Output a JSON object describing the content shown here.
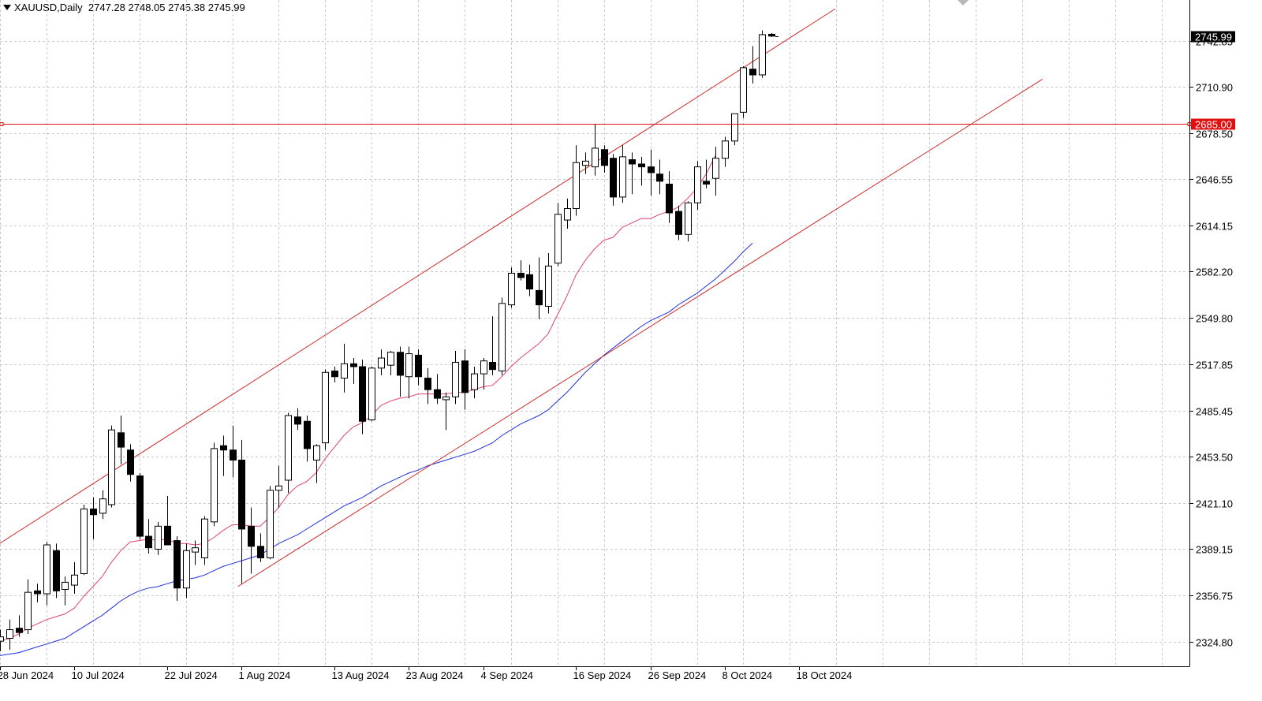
{
  "header": {
    "symbol": "XAUUSD,Daily",
    "ohlc": "2747.28 2748.05 2745.38 2745.99"
  },
  "colors": {
    "bull_fill": "#ffffff",
    "bear_fill": "#000000",
    "candle_outline": "#000000",
    "ma_fast": "#e0407a",
    "ma_slow": "#1f2fe0",
    "channel": "#cc2a2a",
    "hline": "#e01010",
    "grid": "#c8c8c8"
  },
  "chart_data": {
    "type": "candlestick",
    "ylim": [
      2310,
      2760
    ],
    "grid": true,
    "y_ticks": [
      2324.8,
      2356.75,
      2389.15,
      2421.1,
      2453.5,
      2485.45,
      2517.85,
      2549.8,
      2582.2,
      2614.15,
      2646.55,
      2678.5,
      2710.9,
      2742.85
    ],
    "y_tick_labels": [
      "2324.80",
      "2356.75",
      "2389.15",
      "2421.10",
      "2453.50",
      "2485.45",
      "2517.85",
      "2549.80",
      "2582.20",
      "2614.15",
      "2646.55",
      "2678.50",
      "2710.90",
      "2742.85"
    ],
    "x_labels": [
      {
        "index": 0,
        "label": "28 Jun 2024"
      },
      {
        "index": 8,
        "label": "10 Jul 2024"
      },
      {
        "index": 18,
        "label": "22 Jul 2024"
      },
      {
        "index": 26,
        "label": "1 Aug 2024"
      },
      {
        "index": 36,
        "label": "13 Aug 2024"
      },
      {
        "index": 44,
        "label": "23 Aug 2024"
      },
      {
        "index": 52,
        "label": "4 Sep 2024"
      },
      {
        "index": 62,
        "label": "16 Sep 2024"
      },
      {
        "index": 70,
        "label": "26 Sep 2024"
      },
      {
        "index": 78,
        "label": "8 Oct 2024"
      },
      {
        "index": 86,
        "label": "18 Oct 2024"
      }
    ],
    "candles": [
      {
        "o": 2325,
        "h": 2333,
        "l": 2318,
        "c": 2328
      },
      {
        "o": 2327,
        "h": 2340,
        "l": 2319,
        "c": 2333
      },
      {
        "o": 2334,
        "h": 2343,
        "l": 2328,
        "c": 2331
      },
      {
        "o": 2333,
        "h": 2368,
        "l": 2330,
        "c": 2359
      },
      {
        "o": 2360,
        "h": 2365,
        "l": 2352,
        "c": 2358
      },
      {
        "o": 2358,
        "h": 2394,
        "l": 2350,
        "c": 2392
      },
      {
        "o": 2388,
        "h": 2393,
        "l": 2355,
        "c": 2360
      },
      {
        "o": 2361,
        "h": 2370,
        "l": 2350,
        "c": 2366
      },
      {
        "o": 2364,
        "h": 2380,
        "l": 2358,
        "c": 2371
      },
      {
        "o": 2372,
        "h": 2420,
        "l": 2371,
        "c": 2417
      },
      {
        "o": 2417,
        "h": 2425,
        "l": 2396,
        "c": 2413
      },
      {
        "o": 2414,
        "h": 2430,
        "l": 2410,
        "c": 2424
      },
      {
        "o": 2420,
        "h": 2475,
        "l": 2418,
        "c": 2472
      },
      {
        "o": 2470,
        "h": 2482,
        "l": 2448,
        "c": 2460
      },
      {
        "o": 2458,
        "h": 2462,
        "l": 2436,
        "c": 2441
      },
      {
        "o": 2440,
        "h": 2442,
        "l": 2396,
        "c": 2398
      },
      {
        "o": 2398,
        "h": 2410,
        "l": 2386,
        "c": 2390
      },
      {
        "o": 2389,
        "h": 2408,
        "l": 2385,
        "c": 2405
      },
      {
        "o": 2405,
        "h": 2426,
        "l": 2393,
        "c": 2392
      },
      {
        "o": 2395,
        "h": 2398,
        "l": 2353,
        "c": 2362
      },
      {
        "o": 2362,
        "h": 2393,
        "l": 2355,
        "c": 2388
      },
      {
        "o": 2387,
        "h": 2395,
        "l": 2378,
        "c": 2390
      },
      {
        "o": 2383,
        "h": 2412,
        "l": 2378,
        "c": 2410
      },
      {
        "o": 2408,
        "h": 2463,
        "l": 2405,
        "c": 2459
      },
      {
        "o": 2461,
        "h": 2468,
        "l": 2440,
        "c": 2458
      },
      {
        "o": 2458,
        "h": 2475,
        "l": 2439,
        "c": 2451
      },
      {
        "o": 2451,
        "h": 2465,
        "l": 2365,
        "c": 2403
      },
      {
        "o": 2405,
        "h": 2418,
        "l": 2372,
        "c": 2391
      },
      {
        "o": 2391,
        "h": 2400,
        "l": 2380,
        "c": 2383
      },
      {
        "o": 2383,
        "h": 2433,
        "l": 2382,
        "c": 2430
      },
      {
        "o": 2430,
        "h": 2447,
        "l": 2418,
        "c": 2433
      },
      {
        "o": 2437,
        "h": 2484,
        "l": 2428,
        "c": 2482
      },
      {
        "o": 2481,
        "h": 2487,
        "l": 2472,
        "c": 2476
      },
      {
        "o": 2478,
        "h": 2482,
        "l": 2450,
        "c": 2459
      },
      {
        "o": 2451,
        "h": 2462,
        "l": 2435,
        "c": 2461
      },
      {
        "o": 2463,
        "h": 2514,
        "l": 2458,
        "c": 2512
      },
      {
        "o": 2513,
        "h": 2516,
        "l": 2505,
        "c": 2509
      },
      {
        "o": 2508,
        "h": 2532,
        "l": 2498,
        "c": 2518
      },
      {
        "o": 2518,
        "h": 2522,
        "l": 2504,
        "c": 2516
      },
      {
        "o": 2516,
        "h": 2521,
        "l": 2469,
        "c": 2478
      },
      {
        "o": 2479,
        "h": 2516,
        "l": 2478,
        "c": 2515
      },
      {
        "o": 2515,
        "h": 2528,
        "l": 2510,
        "c": 2522
      },
      {
        "o": 2517,
        "h": 2527,
        "l": 2510,
        "c": 2526
      },
      {
        "o": 2526,
        "h": 2530,
        "l": 2495,
        "c": 2510
      },
      {
        "o": 2509,
        "h": 2530,
        "l": 2494,
        "c": 2525
      },
      {
        "o": 2524,
        "h": 2528,
        "l": 2503,
        "c": 2509
      },
      {
        "o": 2508,
        "h": 2515,
        "l": 2490,
        "c": 2500
      },
      {
        "o": 2500,
        "h": 2511,
        "l": 2490,
        "c": 2494
      },
      {
        "o": 2493,
        "h": 2498,
        "l": 2472,
        "c": 2495
      },
      {
        "o": 2495,
        "h": 2527,
        "l": 2490,
        "c": 2519
      },
      {
        "o": 2520,
        "h": 2528,
        "l": 2486,
        "c": 2498
      },
      {
        "o": 2500,
        "h": 2516,
        "l": 2494,
        "c": 2511
      },
      {
        "o": 2511,
        "h": 2522,
        "l": 2500,
        "c": 2520
      },
      {
        "o": 2519,
        "h": 2551,
        "l": 2510,
        "c": 2514
      },
      {
        "o": 2513,
        "h": 2564,
        "l": 2510,
        "c": 2560
      },
      {
        "o": 2559,
        "h": 2585,
        "l": 2557,
        "c": 2581
      },
      {
        "o": 2581,
        "h": 2590,
        "l": 2576,
        "c": 2578
      },
      {
        "o": 2580,
        "h": 2587,
        "l": 2565,
        "c": 2570
      },
      {
        "o": 2569,
        "h": 2592,
        "l": 2549,
        "c": 2559
      },
      {
        "o": 2558,
        "h": 2595,
        "l": 2553,
        "c": 2586
      },
      {
        "o": 2588,
        "h": 2630,
        "l": 2586,
        "c": 2622
      },
      {
        "o": 2618,
        "h": 2633,
        "l": 2612,
        "c": 2626
      },
      {
        "o": 2626,
        "h": 2670,
        "l": 2621,
        "c": 2658
      },
      {
        "o": 2656,
        "h": 2665,
        "l": 2650,
        "c": 2659
      },
      {
        "o": 2655,
        "h": 2685,
        "l": 2649,
        "c": 2668
      },
      {
        "o": 2667,
        "h": 2670,
        "l": 2651,
        "c": 2656
      },
      {
        "o": 2661,
        "h": 2664,
        "l": 2628,
        "c": 2634
      },
      {
        "o": 2634,
        "h": 2670,
        "l": 2630,
        "c": 2662
      },
      {
        "o": 2660,
        "h": 2665,
        "l": 2636,
        "c": 2657
      },
      {
        "o": 2657,
        "h": 2662,
        "l": 2642,
        "c": 2655
      },
      {
        "o": 2655,
        "h": 2667,
        "l": 2635,
        "c": 2651
      },
      {
        "o": 2650,
        "h": 2660,
        "l": 2636,
        "c": 2645
      },
      {
        "o": 2643,
        "h": 2652,
        "l": 2616,
        "c": 2623
      },
      {
        "o": 2624,
        "h": 2628,
        "l": 2604,
        "c": 2608
      },
      {
        "o": 2608,
        "h": 2631,
        "l": 2603,
        "c": 2630
      },
      {
        "o": 2630,
        "h": 2659,
        "l": 2625,
        "c": 2655
      },
      {
        "o": 2645,
        "h": 2660,
        "l": 2640,
        "c": 2643
      },
      {
        "o": 2647,
        "h": 2669,
        "l": 2635,
        "c": 2661
      },
      {
        "o": 2661,
        "h": 2676,
        "l": 2655,
        "c": 2673
      },
      {
        "o": 2673,
        "h": 2692,
        "l": 2670,
        "c": 2692
      },
      {
        "o": 2693,
        "h": 2725,
        "l": 2689,
        "c": 2724
      },
      {
        "o": 2723,
        "h": 2739,
        "l": 2713,
        "c": 2719
      },
      {
        "o": 2719,
        "h": 2750,
        "l": 2717,
        "c": 2747
      },
      {
        "o": 2747.28,
        "h": 2748.05,
        "l": 2745.38,
        "c": 2745.99
      }
    ],
    "series": [
      {
        "key": "ma_fast",
        "start_index": 0,
        "values": [
          2325,
          2327,
          2330,
          2334,
          2337,
          2340,
          2342,
          2344,
          2348,
          2356,
          2363,
          2370,
          2380,
          2388,
          2394,
          2395,
          2396,
          2395,
          2396,
          2393,
          2393,
          2392,
          2393,
          2397,
          2402,
          2406,
          2406,
          2405,
          2405,
          2411,
          2418,
          2427,
          2433,
          2436,
          2442,
          2452,
          2460,
          2468,
          2474,
          2477,
          2482,
          2489,
          2492,
          2494,
          2495,
          2497,
          2497,
          2497,
          2497,
          2498,
          2498,
          2500,
          2502,
          2503,
          2509,
          2516,
          2522,
          2527,
          2532,
          2539,
          2552,
          2565,
          2580,
          2590,
          2598,
          2604,
          2606,
          2613,
          2616,
          2619,
          2619,
          2622,
          2624,
          2627,
          2633,
          2640,
          2650,
          2663
        ]
      },
      {
        "key": "ma_slow",
        "start_index": 0,
        "values": [
          2315,
          2316,
          2317,
          2319,
          2321,
          2323,
          2325,
          2327,
          2331,
          2335,
          2339,
          2343,
          2348,
          2353,
          2357,
          2360,
          2362,
          2363,
          2365,
          2367,
          2368,
          2369,
          2371,
          2374,
          2377,
          2379,
          2381,
          2383,
          2385,
          2389,
          2393,
          2396,
          2399,
          2403,
          2407,
          2411,
          2415,
          2419,
          2422,
          2425,
          2429,
          2433,
          2436,
          2439,
          2442,
          2444,
          2447,
          2449,
          2451,
          2453,
          2455,
          2457,
          2460,
          2463,
          2468,
          2472,
          2476,
          2479,
          2482,
          2486,
          2492,
          2498,
          2505,
          2512,
          2518,
          2524,
          2529,
          2534,
          2539,
          2544,
          2548,
          2551,
          2554,
          2559,
          2563,
          2567,
          2572,
          2577,
          2583,
          2589,
          2596,
          2602
        ]
      }
    ],
    "trendlines": [
      {
        "from_index": -1,
        "from_price": 2389,
        "to_index": 89.9,
        "to_price": 2765
      },
      {
        "from_index": 25.6,
        "from_price": 2363,
        "to_index": 112.2,
        "to_price": 2716
      }
    ],
    "hline": {
      "price": 2685.0,
      "label": "2685.00"
    },
    "last_price": {
      "price": 2745.99,
      "label": "2745.99"
    }
  }
}
